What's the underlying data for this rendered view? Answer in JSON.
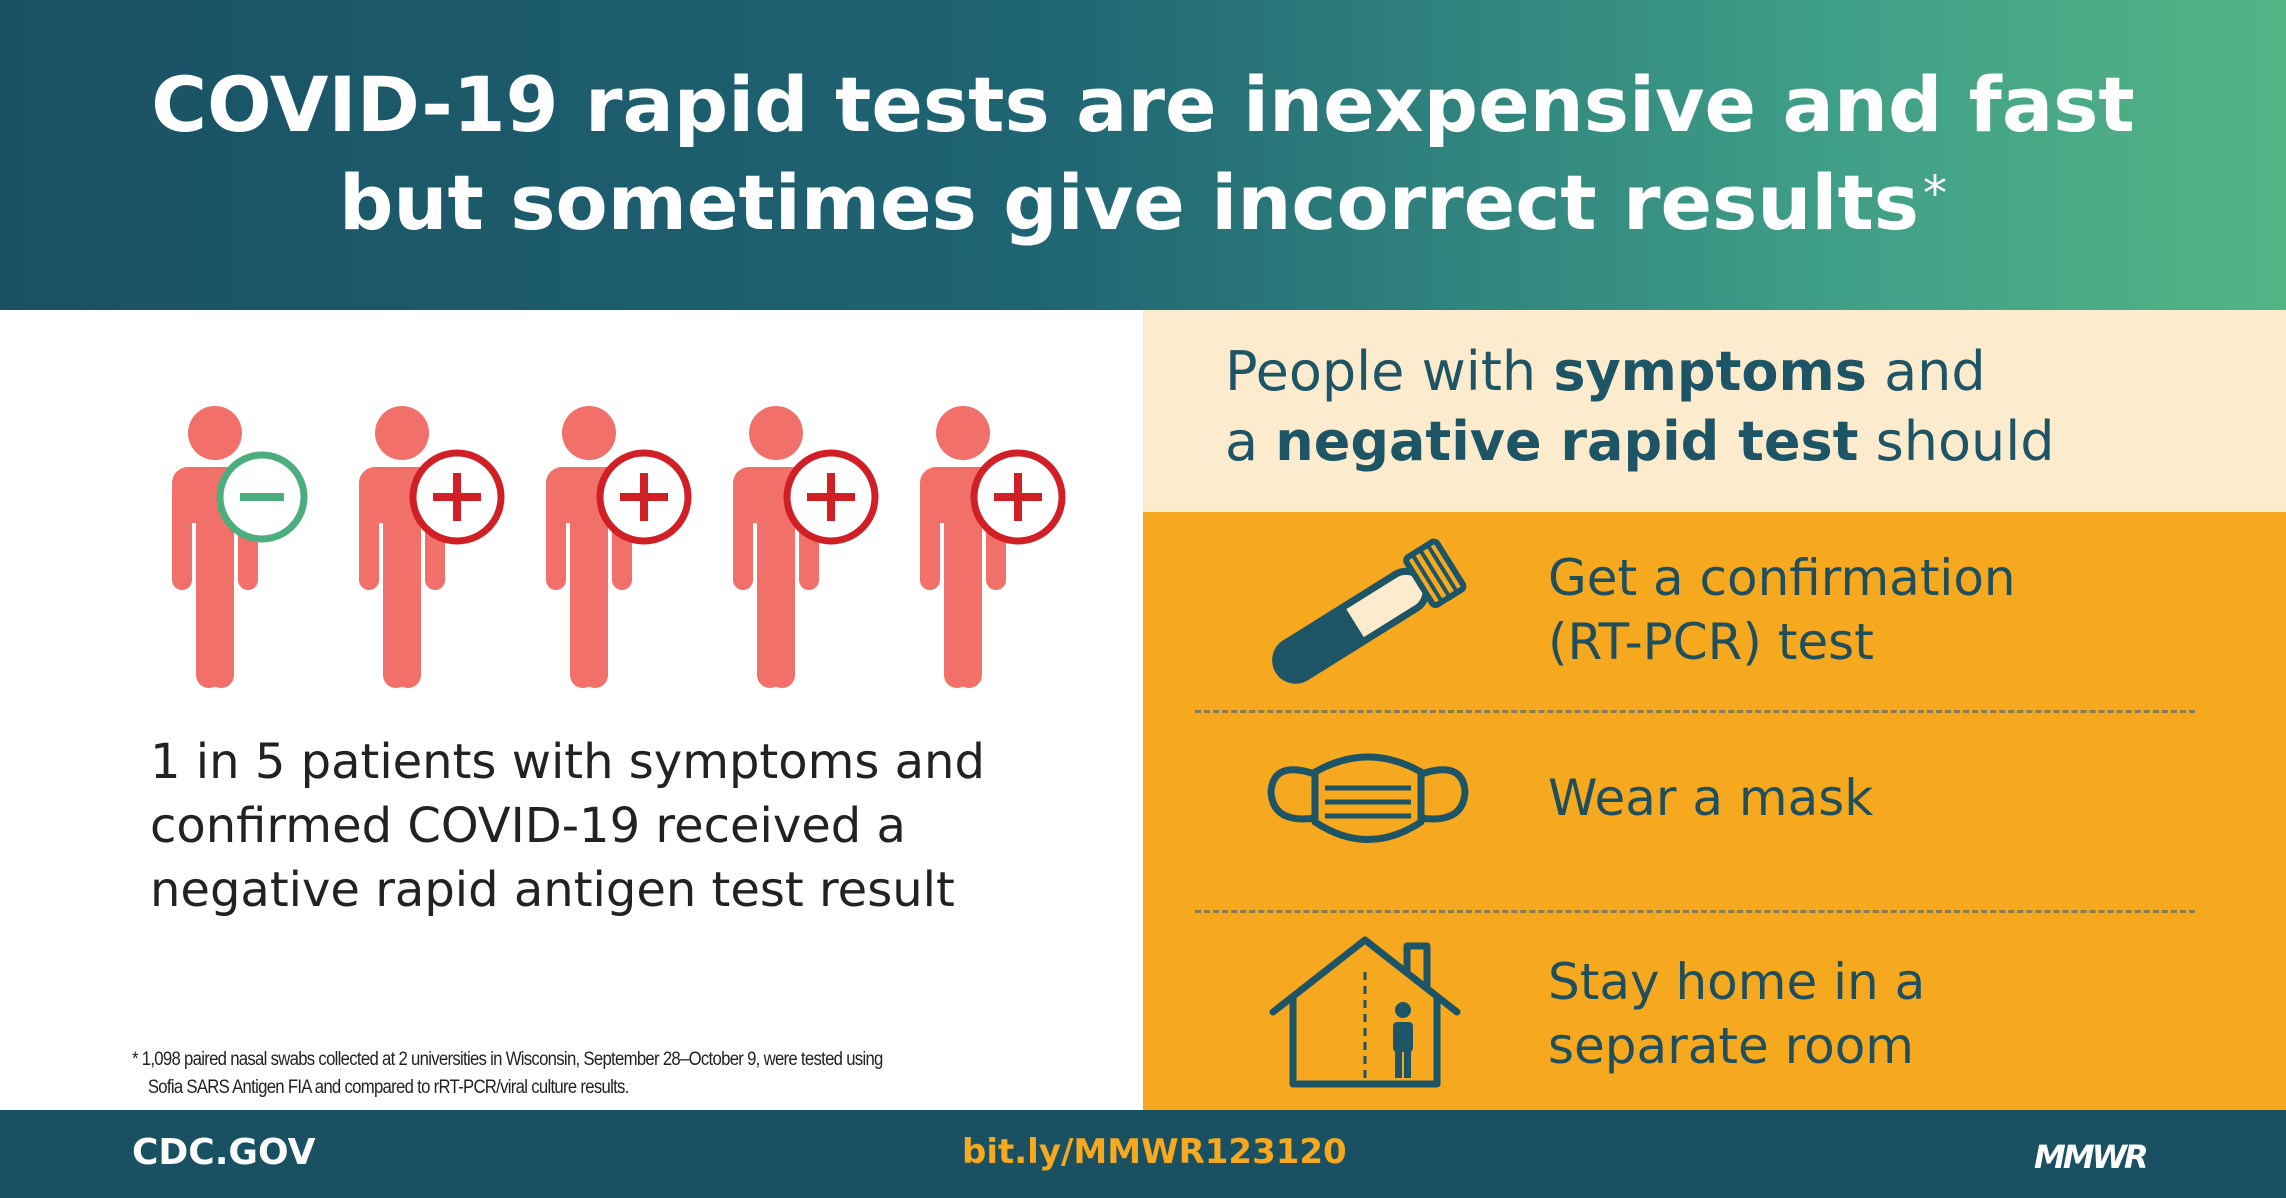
{
  "header": {
    "title_line1": "COVID-19 rapid tests are inexpensive and fast",
    "title_line2": "but sometimes give incorrect results",
    "asterisk": "*"
  },
  "left": {
    "people": [
      {
        "result": "negative",
        "symbol": "minus-icon"
      },
      {
        "result": "positive",
        "symbol": "plus-icon"
      },
      {
        "result": "positive",
        "symbol": "plus-icon"
      },
      {
        "result": "positive",
        "symbol": "plus-icon"
      },
      {
        "result": "positive",
        "symbol": "plus-icon"
      }
    ],
    "stat_lines": [
      "1 in 5 patients with symptoms and",
      "confirmed COVID-19 received a",
      "negative rapid antigen test result"
    ],
    "footnote_line1": "* 1,098 paired nasal swabs collected at 2 universities in Wisconsin, September 28–October 9, were tested using",
    "footnote_line2": "Sofia SARS Antigen FIA and compared to rRT-PCR/viral culture results."
  },
  "right": {
    "intro_l1_a": "People with ",
    "intro_l1_b": "symptoms",
    "intro_l1_c": " and",
    "intro_l2_a": "a ",
    "intro_l2_b": "negative rapid test",
    "intro_l2_c": " should",
    "actions": [
      {
        "icon": "test-tube-icon",
        "line1": "Get a confirmation",
        "line2": "(RT-PCR) test"
      },
      {
        "icon": "face-mask-icon",
        "line1": "Wear a mask",
        "line2": ""
      },
      {
        "icon": "house-person-icon",
        "line1": "Stay home in a",
        "line2": "separate room"
      }
    ]
  },
  "footer": {
    "site": "CDC.GOV",
    "link": "bit.ly/MMWR123120",
    "brand": "MMWR"
  },
  "colors": {
    "header_start": "#195163",
    "header_end": "#54b486",
    "person": "#f2706a",
    "positive": "#d11f26",
    "negative": "#4cae7e",
    "panel_orange": "#f6a91f",
    "panel_cream": "#fcebcd",
    "dark_teal": "#1d5466",
    "footer": "#195163"
  }
}
